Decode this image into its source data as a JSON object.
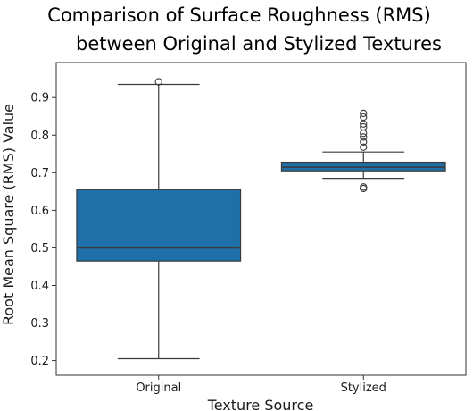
{
  "chart_data": {
    "type": "boxplot",
    "title_lines": [
      "Comparison of Surface Roughness (RMS)",
      "between Original and Stylized Textures"
    ],
    "xlabel": "Texture Source",
    "ylabel": "Root Mean Square (RMS) Value",
    "ylim": [
      0.18,
      0.96
    ],
    "yticks": [
      0.2,
      0.3,
      0.4,
      0.5,
      0.6,
      0.7,
      0.8,
      0.9
    ],
    "ytick_labels": [
      "0.2",
      "0.3",
      "0.4",
      "0.5",
      "0.6",
      "0.7",
      "0.8",
      "0.9"
    ],
    "categories": [
      "Original",
      "Stylized"
    ],
    "box_color": "#1f6fa8",
    "boxes": [
      {
        "category": "Original",
        "whisker_low": 0.205,
        "q1": 0.465,
        "median": 0.5,
        "q3": 0.655,
        "whisker_high": 0.935,
        "outliers": [
          0.942
        ]
      },
      {
        "category": "Stylized",
        "whisker_low": 0.685,
        "q1": 0.705,
        "median": 0.715,
        "q3": 0.728,
        "whisker_high": 0.755,
        "outliers": [
          0.658,
          0.662,
          0.768,
          0.782,
          0.795,
          0.805,
          0.822,
          0.83,
          0.848,
          0.858
        ]
      }
    ],
    "grid": false,
    "legend": "none"
  }
}
